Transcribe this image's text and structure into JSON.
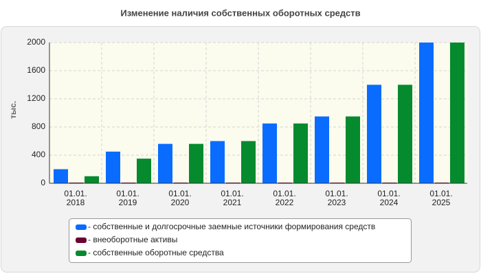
{
  "chart_data": {
    "type": "bar",
    "title": "Изменение наличия собственных оборотных средств",
    "ylabel": "тыс.",
    "categories": [
      "01.01.\n2018",
      "01.01.\n2019",
      "01.01.\n2020",
      "01.01.\n2021",
      "01.01.\n2022",
      "01.01.\n2023",
      "01.01.\n2024",
      "01.01.\n2025"
    ],
    "series": [
      {
        "name": "- собственные и долгосрочные заемные источники формирования средств",
        "color": "#0a6cff",
        "values": [
          200,
          450,
          560,
          600,
          850,
          950,
          1400,
          2000
        ]
      },
      {
        "name": "- внеоборотные активы",
        "color": "#6b0033",
        "values": [
          10,
          10,
          10,
          10,
          10,
          10,
          10,
          10
        ]
      },
      {
        "name": "- собственные оборотные средства",
        "color": "#068a2e",
        "values": [
          100,
          350,
          560,
          600,
          850,
          950,
          1400,
          2000
        ]
      }
    ],
    "ylim": [
      0,
      2000
    ],
    "yticks": [
      0,
      400,
      800,
      1200,
      1600,
      2000
    ],
    "grid": true
  }
}
